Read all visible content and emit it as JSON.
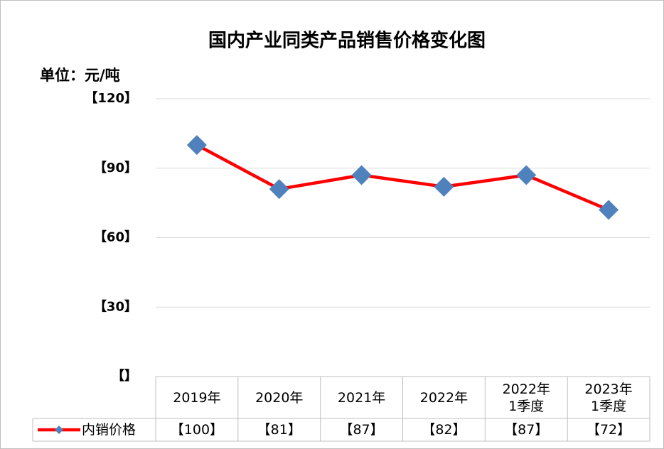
{
  "chart_data": {
    "type": "line",
    "title": "国内产业同类产品销售价格变化图",
    "y_axis_label": "单位：元/吨",
    "categories": [
      "2019年",
      "2020年",
      "2021年",
      "2022年",
      "2022年\n1季度",
      "2023年\n1季度"
    ],
    "series": [
      {
        "name": "内销价格",
        "color": "#ff0000",
        "marker_color": "#4f81bd",
        "values": [
          100,
          81,
          87,
          82,
          87,
          72
        ],
        "value_labels": [
          "【100】",
          "【81】",
          "【87】",
          "【82】",
          "【87】",
          "【72】"
        ]
      }
    ],
    "ylim": [
      0,
      120
    ],
    "yticks": [
      {
        "value": 0,
        "label": "【】"
      },
      {
        "value": 30,
        "label": "【30】"
      },
      {
        "value": 60,
        "label": "【60】"
      },
      {
        "value": 90,
        "label": "【90】"
      },
      {
        "value": 120,
        "label": "【120】"
      }
    ],
    "grid": true
  }
}
